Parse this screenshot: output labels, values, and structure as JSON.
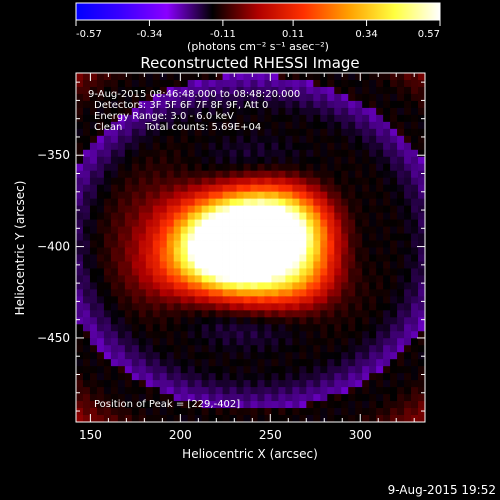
{
  "chart_data": {
    "type": "heatmap",
    "title": "Reconstructed RHESSI Image",
    "xlabel": "Heliocentric X (arcsec)",
    "ylabel": "Heliocentric Y (arcsec)",
    "xlim": [
      142,
      336
    ],
    "ylim": [
      -496,
      -305
    ],
    "x_ticks": [
      150,
      200,
      250,
      300
    ],
    "y_ticks": [
      -350,
      -400,
      -450
    ],
    "colorbar": {
      "range": [
        -0.57,
        0.57
      ],
      "ticks": [
        "-0.57",
        "-0.34",
        "-0.11",
        "0.11",
        "0.34",
        "0.57"
      ],
      "unit_label": "(photons cm⁻² s⁻¹ asec⁻²)",
      "colors": [
        "#0000ff",
        "#3a00ff",
        "#8a00ff",
        "#000000",
        "#b00000",
        "#ff3000",
        "#ffa000",
        "#ffff40",
        "#ffffff"
      ]
    },
    "annotations": {
      "time_range": "9-Aug-2015 08:46:48.000 to 08:48:20.000",
      "detectors": "Detectors: 3F 5F 6F 7F 8F 9F, Att 0",
      "energy": "Energy Range: 3.0 - 6.0 keV",
      "clean_label": "Clean",
      "total_counts": "Total counts: 5.69E+04",
      "peak": "Position of Peak = [229,-402]"
    },
    "peak": [
      229,
      -402
    ],
    "background_value": -0.2,
    "sources": [
      {
        "x": 229,
        "y": -402,
        "amp": 0.78,
        "sx": 18,
        "sy": 15
      },
      {
        "x": 250,
        "y": -385,
        "amp": 0.62,
        "sx": 20,
        "sy": 15
      },
      {
        "x": 210,
        "y": -390,
        "amp": 0.36,
        "sx": 22,
        "sy": 18
      },
      {
        "x": 268,
        "y": -402,
        "amp": 0.42,
        "sx": 16,
        "sy": 18
      },
      {
        "x": 250,
        "y": -420,
        "amp": 0.32,
        "sx": 22,
        "sy": 12
      },
      {
        "x": 200,
        "y": -412,
        "amp": 0.22,
        "sx": 18,
        "sy": 14
      }
    ]
  },
  "timestamp": "9-Aug-2015 19:52"
}
